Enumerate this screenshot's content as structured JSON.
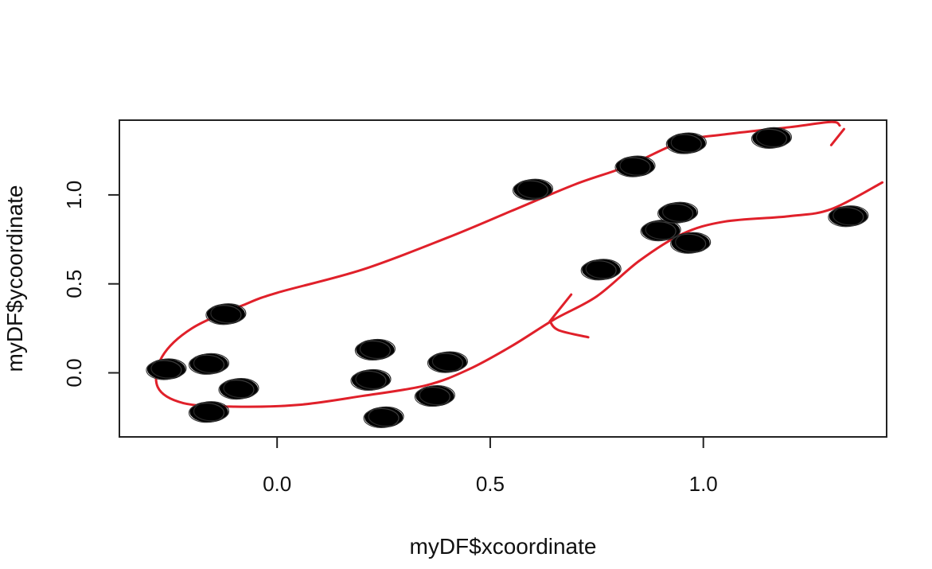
{
  "chart_data": {
    "type": "scatter",
    "xlabel": "myDF$xcoordinate",
    "ylabel": "myDF$ycoordinate",
    "xlim": [
      -0.37,
      1.43
    ],
    "ylim": [
      -0.36,
      1.42
    ],
    "x_ticks": [
      0.0,
      0.5,
      1.0
    ],
    "x_tick_labels": [
      "0.0",
      "0.5",
      "1.0"
    ],
    "y_ticks": [
      0.0,
      0.5,
      1.0
    ],
    "y_tick_labels": [
      "0.0",
      "0.5",
      "1.0"
    ],
    "grid": false,
    "points": [
      {
        "x": -0.26,
        "y": 0.02
      },
      {
        "x": -0.16,
        "y": 0.05
      },
      {
        "x": -0.12,
        "y": 0.33
      },
      {
        "x": -0.09,
        "y": -0.09
      },
      {
        "x": -0.16,
        "y": -0.22
      },
      {
        "x": 0.23,
        "y": 0.13
      },
      {
        "x": 0.22,
        "y": -0.04
      },
      {
        "x": 0.25,
        "y": -0.25
      },
      {
        "x": 0.4,
        "y": 0.06
      },
      {
        "x": 0.37,
        "y": -0.13
      },
      {
        "x": 0.6,
        "y": 1.03
      },
      {
        "x": 0.76,
        "y": 0.58
      },
      {
        "x": 0.84,
        "y": 1.16
      },
      {
        "x": 0.9,
        "y": 0.8
      },
      {
        "x": 0.94,
        "y": 0.9
      },
      {
        "x": 0.96,
        "y": 1.29
      },
      {
        "x": 0.97,
        "y": 0.73
      },
      {
        "x": 1.16,
        "y": 1.32
      },
      {
        "x": 1.34,
        "y": 0.88
      }
    ],
    "annotations": [
      {
        "type": "freehand-line",
        "name": "enclosing-loop",
        "color": "#e0202a",
        "points": [
          [
            1.32,
            1.39
          ],
          [
            1.3,
            1.41
          ],
          [
            1.2,
            1.38
          ],
          [
            1.05,
            1.34
          ],
          [
            0.95,
            1.3
          ],
          [
            0.82,
            1.16
          ],
          [
            0.7,
            1.06
          ],
          [
            0.55,
            0.91
          ],
          [
            0.4,
            0.76
          ],
          [
            0.2,
            0.58
          ],
          [
            0.0,
            0.45
          ],
          [
            -0.08,
            0.38
          ],
          [
            -0.2,
            0.25
          ],
          [
            -0.27,
            0.09
          ],
          [
            -0.28,
            -0.08
          ],
          [
            -0.22,
            -0.17
          ],
          [
            -0.1,
            -0.19
          ],
          [
            0.05,
            -0.18
          ],
          [
            0.2,
            -0.13
          ],
          [
            0.35,
            -0.07
          ],
          [
            0.45,
            0.02
          ],
          [
            0.55,
            0.15
          ],
          [
            0.65,
            0.3
          ],
          [
            0.75,
            0.43
          ],
          [
            0.85,
            0.63
          ],
          [
            0.95,
            0.78
          ],
          [
            1.05,
            0.85
          ],
          [
            1.2,
            0.88
          ],
          [
            1.3,
            0.92
          ],
          [
            1.42,
            1.07
          ]
        ]
      },
      {
        "type": "freehand-line",
        "name": "loop-start-hook",
        "color": "#e0202a",
        "points": [
          [
            1.33,
            1.37
          ],
          [
            1.3,
            1.28
          ]
        ]
      },
      {
        "type": "freehand-line",
        "name": "arrow-head-left-stroke",
        "color": "#e0202a",
        "points": [
          [
            0.64,
            0.29
          ],
          [
            0.66,
            0.35
          ],
          [
            0.69,
            0.44
          ]
        ]
      },
      {
        "type": "freehand-line",
        "name": "arrow-head-right-stroke",
        "color": "#e0202a",
        "points": [
          [
            0.64,
            0.29
          ],
          [
            0.66,
            0.24
          ],
          [
            0.73,
            0.2
          ]
        ]
      }
    ]
  }
}
